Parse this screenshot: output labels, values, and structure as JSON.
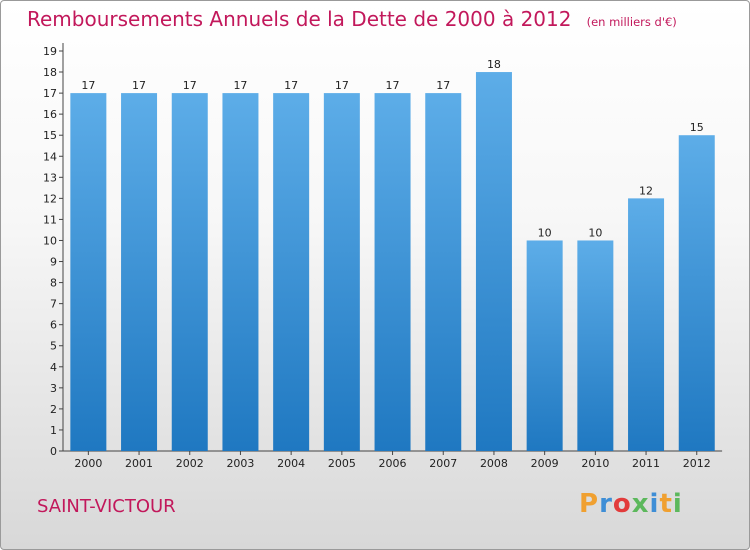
{
  "title": "Remboursements Annuels de la Dette de 2000 à 2012",
  "unit": "(en milliers d'€)",
  "town": "SAINT-VICTOUR",
  "logo": {
    "letters": [
      "P",
      "r",
      "o",
      "x",
      "i",
      "t",
      "i"
    ],
    "colors": [
      "#f0a030",
      "#3e8ed6",
      "#e23b3b",
      "#5cb85c",
      "#3e8ed6",
      "#f0a030",
      "#5cb85c"
    ]
  },
  "colors": {
    "bar_light": "#5dade8",
    "bar_dark": "#1f78c1",
    "title": "#c2185b"
  },
  "chart_data": {
    "type": "bar",
    "categories": [
      "2000",
      "2001",
      "2002",
      "2003",
      "2004",
      "2005",
      "2006",
      "2007",
      "2008",
      "2009",
      "2010",
      "2011",
      "2012"
    ],
    "values": [
      17,
      17,
      17,
      17,
      17,
      17,
      17,
      17,
      18,
      10,
      10,
      12,
      15
    ],
    "ylim": [
      0,
      19
    ],
    "yticks": [
      0,
      1,
      2,
      3,
      4,
      5,
      6,
      7,
      8,
      9,
      10,
      11,
      12,
      13,
      14,
      15,
      16,
      17,
      18,
      19
    ],
    "grid": false,
    "xlabel": "",
    "ylabel": ""
  }
}
